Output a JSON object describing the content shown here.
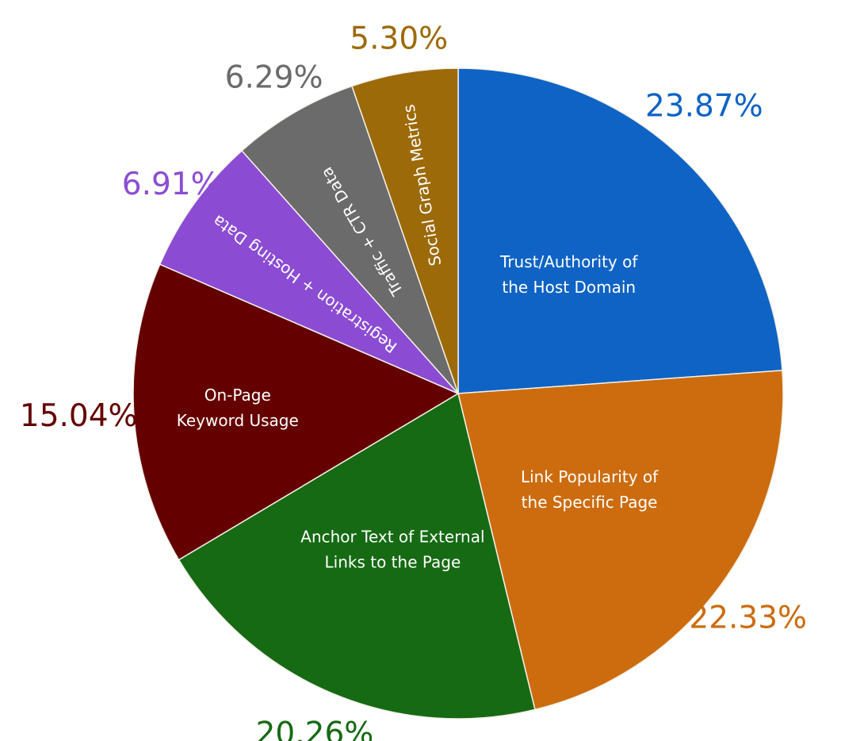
{
  "chart_data": {
    "type": "pie",
    "start": "top",
    "direction": "clockwise",
    "slices": [
      {
        "label": [
          "Trust/Authority of",
          "the Host Domain"
        ],
        "value": 23.87,
        "value_text": "23.87%",
        "color": "#0f63c4"
      },
      {
        "label": [
          "Link Popularity of",
          "the Specific Page"
        ],
        "value": 22.33,
        "value_text": "22.33%",
        "color": "#cc6c0e"
      },
      {
        "label": [
          "Anchor Text of External",
          "Links to the Page"
        ],
        "value": 20.26,
        "value_text": "20.26%",
        "color": "#156a13"
      },
      {
        "label": [
          "On-Page",
          "Keyword Usage"
        ],
        "value": 15.04,
        "value_text": "15.04%",
        "color": "#640000"
      },
      {
        "label": [
          "Registration + Hosting Data"
        ],
        "value": 6.91,
        "value_text": "6.91%",
        "color": "#8b4cd3"
      },
      {
        "label": [
          "Traffic + CTR Data"
        ],
        "value": 6.29,
        "value_text": "6.29%",
        "color": "#6b6b6b"
      },
      {
        "label": [
          "Social Graph Metrics"
        ],
        "value": 5.3,
        "value_text": "5.30%",
        "color": "#9c6a08"
      }
    ],
    "legend": "none"
  }
}
